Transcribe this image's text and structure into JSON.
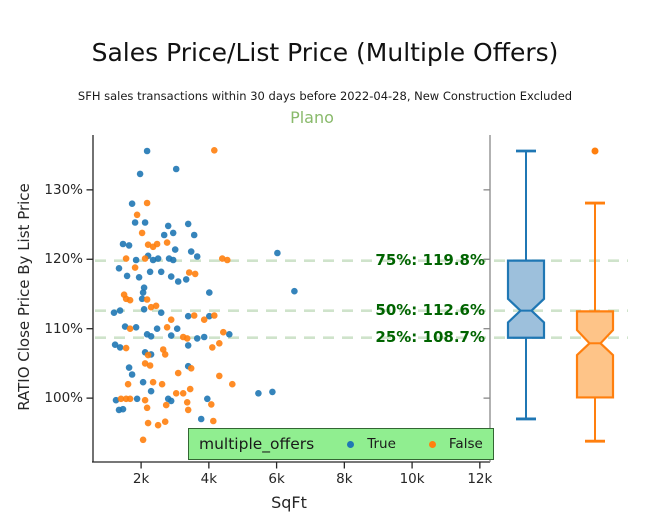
{
  "header": {
    "title": "Sales Price/List Price (Multiple Offers)",
    "subtitle": "SFH sales transactions within 30 days before 2022-04-28, New Construction Excluded"
  },
  "chart_data": {
    "type": "scatter",
    "title": "Plano",
    "xlabel": "SqFt",
    "ylabel": "RATIO Close Price By List Price",
    "xlim": [
      580,
      12300
    ],
    "ylim": [
      90.8,
      137.9
    ],
    "grid": "off",
    "x_ticks": [
      {
        "value": 2000,
        "label": "2k"
      },
      {
        "value": 4000,
        "label": "4k"
      },
      {
        "value": 6000,
        "label": "6k"
      },
      {
        "value": 8000,
        "label": "8k"
      },
      {
        "value": 10000,
        "label": "10k"
      },
      {
        "value": 12000,
        "label": "12k"
      }
    ],
    "y_ticks": [
      {
        "value": 100,
        "label": "100%"
      },
      {
        "value": 110,
        "label": "110%"
      },
      {
        "value": 120,
        "label": "120%"
      },
      {
        "value": 130,
        "label": "130%"
      }
    ],
    "legend": {
      "title": "multiple_offers",
      "position": "lower right",
      "background": "#90ee90",
      "entries": [
        {
          "label": "True",
          "color": "#1f77b4"
        },
        {
          "label": "False",
          "color": "#ff7f0e"
        }
      ]
    },
    "annotations": [
      {
        "label": "75%: 119.8%",
        "percentile": "75%",
        "value": 119.8
      },
      {
        "label": "50%: 112.6%",
        "percentile": "50%",
        "value": 112.6
      },
      {
        "label": "25%: 108.7%",
        "percentile": "25%",
        "value": 108.7
      }
    ],
    "annotation_color": "#006400",
    "gridline_color": "#cfe3cb",
    "series": [
      {
        "name": "True",
        "color": "#1f77b4",
        "points": [
          [
            2178,
            135.6
          ],
          [
            3036,
            133.0
          ],
          [
            1970,
            132.3
          ],
          [
            1734,
            128.0
          ],
          [
            1822,
            125.3
          ],
          [
            2118,
            125.3
          ],
          [
            2799,
            124.8
          ],
          [
            2947,
            123.8
          ],
          [
            3391,
            125.1
          ],
          [
            3568,
            123.5
          ],
          [
            2681,
            123.5
          ],
          [
            1467,
            122.2
          ],
          [
            1645,
            122.0
          ],
          [
            3006,
            121.4
          ],
          [
            1852,
            119.9
          ],
          [
            2207,
            120.5
          ],
          [
            2355,
            119.9
          ],
          [
            2503,
            120.1
          ],
          [
            2828,
            120.1
          ],
          [
            2947,
            119.9
          ],
          [
            6024,
            120.9
          ],
          [
            3480,
            121.1
          ],
          [
            3657,
            120.4
          ],
          [
            1349,
            118.7
          ],
          [
            1586,
            117.6
          ],
          [
            1941,
            117.4
          ],
          [
            2266,
            118.2
          ],
          [
            2592,
            118.2
          ],
          [
            2888,
            117.5
          ],
          [
            3095,
            116.8
          ],
          [
            3331,
            117.1
          ],
          [
            4012,
            115.2
          ],
          [
            2089,
            115.9
          ],
          [
            2059,
            115.2
          ],
          [
            6527,
            115.4
          ],
          [
            2030,
            114.3
          ],
          [
            1379,
            112.6
          ],
          [
            1201,
            112.3
          ],
          [
            2089,
            112.8
          ],
          [
            2592,
            112.3
          ],
          [
            3391,
            111.8
          ],
          [
            4012,
            111.8
          ],
          [
            1527,
            110.3
          ],
          [
            1852,
            110.2
          ],
          [
            2178,
            109.2
          ],
          [
            2296,
            108.9
          ],
          [
            2473,
            110.0
          ],
          [
            2888,
            109.0
          ],
          [
            3065,
            110.0
          ],
          [
            3657,
            108.6
          ],
          [
            3864,
            108.8
          ],
          [
            4604,
            109.2
          ],
          [
            3391,
            107.6
          ],
          [
            1231,
            107.7
          ],
          [
            1379,
            107.3
          ],
          [
            2118,
            106.6
          ],
          [
            2296,
            106.3
          ],
          [
            1645,
            104.4
          ],
          [
            1734,
            103.4
          ],
          [
            3391,
            104.6
          ],
          [
            2059,
            102.3
          ],
          [
            2296,
            101.0
          ],
          [
            1260,
            99.7
          ],
          [
            1882,
            99.9
          ],
          [
            2799,
            99.9
          ],
          [
            2888,
            99.6
          ],
          [
            3953,
            99.9
          ],
          [
            5462,
            100.7
          ],
          [
            5876,
            100.9
          ],
          [
            1349,
            98.3
          ],
          [
            1467,
            98.4
          ],
          [
            3775,
            97.0
          ]
        ]
      },
      {
        "name": "False",
        "color": "#ff7f0e",
        "points": [
          [
            4160,
            135.7
          ],
          [
            2178,
            128.1
          ],
          [
            1882,
            126.4
          ],
          [
            2030,
            123.8
          ],
          [
            2207,
            122.1
          ],
          [
            2355,
            121.8
          ],
          [
            2473,
            122.2
          ],
          [
            2769,
            122.4
          ],
          [
            1556,
            120.1
          ],
          [
            2118,
            120.1
          ],
          [
            4397,
            120.1
          ],
          [
            4545,
            119.9
          ],
          [
            1822,
            118.8
          ],
          [
            3420,
            118.1
          ],
          [
            3598,
            117.9
          ],
          [
            1497,
            114.9
          ],
          [
            1556,
            114.3
          ],
          [
            1675,
            114.1
          ],
          [
            2178,
            114.2
          ],
          [
            2296,
            113.1
          ],
          [
            2444,
            113.3
          ],
          [
            2888,
            111.3
          ],
          [
            3568,
            111.9
          ],
          [
            3864,
            111.3
          ],
          [
            4160,
            111.9
          ],
          [
            1675,
            110.0
          ],
          [
            2769,
            110.2
          ],
          [
            3243,
            108.8
          ],
          [
            3361,
            108.6
          ],
          [
            4426,
            109.5
          ],
          [
            4308,
            107.9
          ],
          [
            4101,
            107.3
          ],
          [
            1556,
            107.2
          ],
          [
            2207,
            106.2
          ],
          [
            2651,
            107.0
          ],
          [
            2710,
            106.3
          ],
          [
            2118,
            105.0
          ],
          [
            2266,
            104.7
          ],
          [
            3095,
            103.6
          ],
          [
            3480,
            104.3
          ],
          [
            1615,
            102.0
          ],
          [
            2355,
            102.3
          ],
          [
            2621,
            102.0
          ],
          [
            4308,
            103.2
          ],
          [
            4693,
            102.0
          ],
          [
            3450,
            101.3
          ],
          [
            1408,
            99.9
          ],
          [
            1556,
            99.9
          ],
          [
            1675,
            99.9
          ],
          [
            2118,
            99.7
          ],
          [
            2178,
            98.6
          ],
          [
            3036,
            100.7
          ],
          [
            3243,
            100.7
          ],
          [
            4071,
            99.1
          ],
          [
            2740,
            99.0
          ],
          [
            3361,
            99.4
          ],
          [
            3391,
            98.3
          ],
          [
            4130,
            96.7
          ],
          [
            2207,
            96.4
          ],
          [
            2503,
            96.1
          ],
          [
            2710,
            96.6
          ],
          [
            2059,
            94.0
          ]
        ]
      }
    ],
    "boxplots": [
      {
        "name": "True",
        "color": "#1f77b4",
        "fill": "#9dc0dc",
        "whisker_low": 97.0,
        "q1": 108.7,
        "median": 112.6,
        "q3": 119.8,
        "whisker_high": 135.6,
        "notch_low": 110.9,
        "notch_high": 114.3,
        "outliers": []
      },
      {
        "name": "False",
        "color": "#ff7f0e",
        "fill": "#fec488",
        "whisker_low": 93.8,
        "q1": 100.1,
        "median": 107.9,
        "q3": 112.5,
        "whisker_high": 128.1,
        "notch_low": 106.2,
        "notch_high": 109.8,
        "outliers": [
          135.6
        ]
      }
    ]
  }
}
